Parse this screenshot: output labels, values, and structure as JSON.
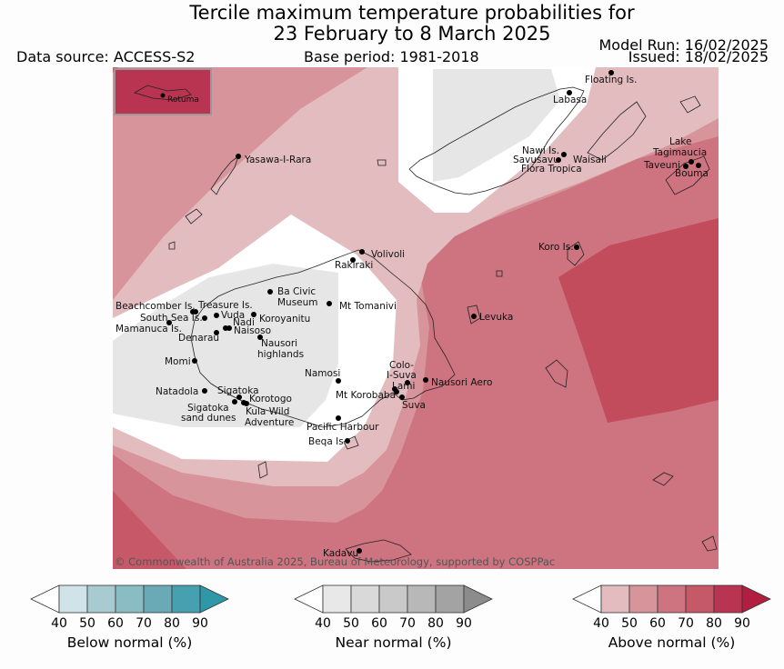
{
  "title_line1": "Tercile maximum temperature probabilities for",
  "title_line2": "23 February to 8 March 2025",
  "data_source": "Data source: ACCESS-S2",
  "base_period": "Base period: 1981-2018",
  "model_run": "Model Run: 16/02/2025",
  "issued": "Issued: 18/02/2025",
  "copyright": "© Commonwealth of Australia 2025, Bureau of Meteorology, supported by COSPPac",
  "inset_label": "Rotuma",
  "places": [
    {
      "name": "Floating Is."
    },
    {
      "name": "Labasa"
    },
    {
      "name": "Yasawa-I-Rara"
    },
    {
      "name": "Nawi Is."
    },
    {
      "name": "Savusavu"
    },
    {
      "name": "Waisali"
    },
    {
      "name": "Flora Tropica"
    },
    {
      "name": "Lake"
    },
    {
      "name": "Tagimaucia"
    },
    {
      "name": "Taveuni"
    },
    {
      "name": "Bouma"
    },
    {
      "name": "Koro Is."
    },
    {
      "name": "Volivoli"
    },
    {
      "name": "Rakiraki"
    },
    {
      "name": "Beachcomber Is."
    },
    {
      "name": "Treasure Is."
    },
    {
      "name": "Ba Civic"
    },
    {
      "name": "Museum"
    },
    {
      "name": "Mt Tomanivi"
    },
    {
      "name": "South Sea Is."
    },
    {
      "name": "Vuda"
    },
    {
      "name": "Koroyanitu"
    },
    {
      "name": "Nadi"
    },
    {
      "name": "Mamanuca Is."
    },
    {
      "name": "Naisoso"
    },
    {
      "name": "Denarau"
    },
    {
      "name": "Nausori"
    },
    {
      "name": "highlands"
    },
    {
      "name": "Levuka"
    },
    {
      "name": "Momi"
    },
    {
      "name": "Colo-"
    },
    {
      "name": "I-Suva"
    },
    {
      "name": "Namosi"
    },
    {
      "name": "Nausori Aero"
    },
    {
      "name": "Lami"
    },
    {
      "name": "Natadola"
    },
    {
      "name": "Sigatoka"
    },
    {
      "name": "Mt Korobaba"
    },
    {
      "name": "Korotogo"
    },
    {
      "name": "Suva"
    },
    {
      "name": "Sigatoka"
    },
    {
      "name": "sand dunes"
    },
    {
      "name": "Kula Wild"
    },
    {
      "name": "Adventure"
    },
    {
      "name": "Pacific Harbour"
    },
    {
      "name": "Beqa Is."
    },
    {
      "name": "Kadavu"
    }
  ],
  "colorbars": [
    {
      "title": "Below normal (%)",
      "ticks": [
        "40",
        "50",
        "60",
        "70",
        "80",
        "90"
      ],
      "colors": [
        "#ffffff",
        "#cfe3e8",
        "#a8cbd2",
        "#8abcc4",
        "#6aaab6",
        "#47a0b0",
        "#2e97a8"
      ]
    },
    {
      "title": "Near normal (%)",
      "ticks": [
        "40",
        "50",
        "60",
        "70",
        "80",
        "90"
      ],
      "colors": [
        "#ffffff",
        "#e8e8e8",
        "#d9d9d9",
        "#c9c9c9",
        "#b8b8b8",
        "#a3a3a3",
        "#8c8c8c"
      ]
    },
    {
      "title": "Above normal (%)",
      "ticks": [
        "40",
        "50",
        "60",
        "70",
        "80",
        "90"
      ],
      "colors": [
        "#ffffff",
        "#e3bcc0",
        "#d7959b",
        "#cd7480",
        "#c75868",
        "#b93450",
        "#b11e40"
      ]
    }
  ]
}
